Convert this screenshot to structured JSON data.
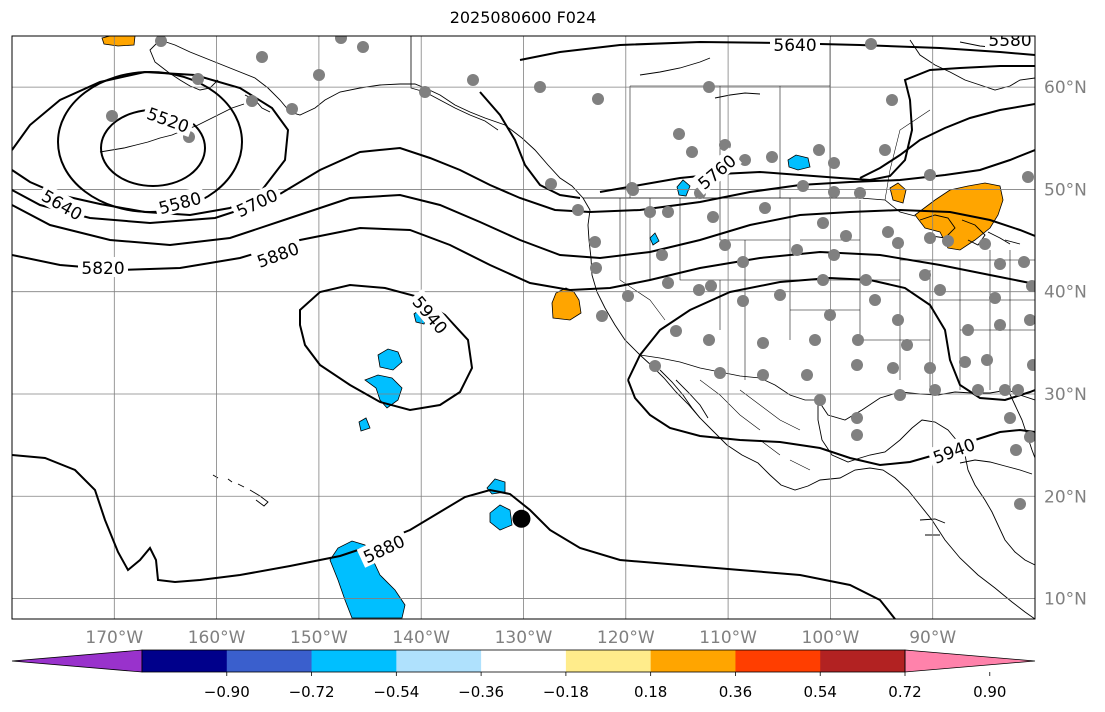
{
  "title": "2025080600 F024",
  "map": {
    "projection": "PlateCarree",
    "lon_range": [
      -180,
      -80
    ],
    "lat_range": [
      8,
      65
    ],
    "lon_ticks": [
      {
        "lon": -170,
        "label": "170°W"
      },
      {
        "lon": -160,
        "label": "160°W"
      },
      {
        "lon": -150,
        "label": "150°W"
      },
      {
        "lon": -140,
        "label": "140°W"
      },
      {
        "lon": -130,
        "label": "130°W"
      },
      {
        "lon": -120,
        "label": "120°W"
      },
      {
        "lon": -110,
        "label": "110°W"
      },
      {
        "lon": -100,
        "label": "100°W"
      },
      {
        "lon": -90,
        "label": "90°W"
      }
    ],
    "lat_ticks": [
      {
        "lat": 60,
        "label": "60°N"
      },
      {
        "lat": 50,
        "label": "50°N"
      },
      {
        "lat": 40,
        "label": "40°N"
      },
      {
        "lat": 30,
        "label": "30°N"
      },
      {
        "lat": 20,
        "label": "20°N"
      },
      {
        "lat": 10,
        "label": "10°N"
      }
    ],
    "gridlines": true,
    "contour_labels": [
      {
        "text": "5520",
        "lon": -175,
        "lat": 56.5,
        "rot": 20
      },
      {
        "text": "5580",
        "lon": -174,
        "lat": 50.2,
        "rot": -15
      },
      {
        "text": "5640",
        "lon": -175,
        "lat": 50,
        "rot": 30
      },
      {
        "text": "5700",
        "lon": -176,
        "lat": 48.6,
        "rot": -25
      },
      {
        "text": "5820",
        "lon": -179,
        "lat": 42.2,
        "rot": 0
      },
      {
        "text": "5880",
        "lon": -173,
        "lat": 44.3,
        "rot": -20
      },
      {
        "text": "5940",
        "lon": -181,
        "lat": 37.7,
        "rot": 50
      },
      {
        "text": "5640",
        "lon": -180,
        "lat": 62.8,
        "rot": 0
      },
      {
        "text": "5760",
        "lon": -172,
        "lat": 50.4,
        "rot": -40
      },
      {
        "text": "5940",
        "lon": -176,
        "lat": 23.7,
        "rot": -20
      },
      {
        "text": "5880",
        "lon": -181,
        "lat": 14,
        "rot": -25
      },
      {
        "text": "5580",
        "lon": -181,
        "lat": 64.8,
        "rot": 0
      }
    ],
    "marker": {
      "lon": -130.2,
      "lat": 17.8,
      "label": ""
    }
  },
  "colorbar": {
    "colors": [
      "#9932cc",
      "#00008b",
      "#3a5fcd",
      "#00bfff",
      "#afe1fd",
      "#ffffff",
      "#ffec8b",
      "#ffa500",
      "#ff3e00",
      "#b22222",
      "#ff82ab"
    ],
    "tick_labels": [
      "−0.90",
      "−0.72",
      "−0.54",
      "−0.36",
      "−0.18",
      "0.18",
      "0.36",
      "0.54",
      "0.72",
      "0.90"
    ],
    "extend": "both"
  },
  "colors": {
    "contour": "#000000",
    "station": "#808080",
    "coast": "#000000",
    "grid": "#808080"
  }
}
